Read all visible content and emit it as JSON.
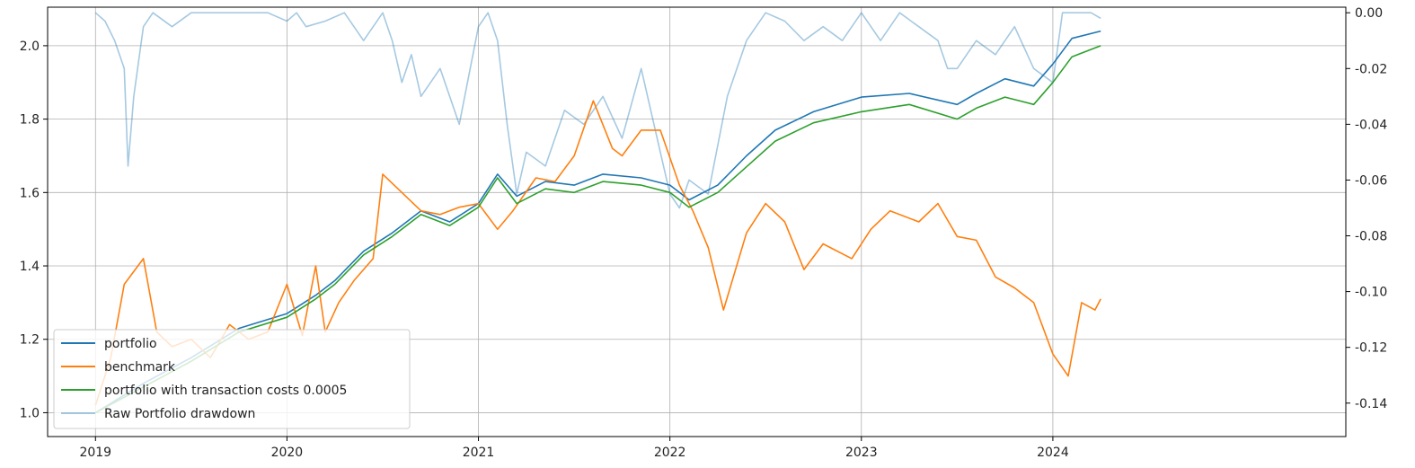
{
  "chart_data": {
    "type": "line",
    "title": "",
    "xlabel": "",
    "ylabel": "",
    "x_range": [
      2018.75,
      2025.53
    ],
    "ylim_left": [
      0.935,
      2.105
    ],
    "ylim_right": [
      -0.152,
      0.002
    ],
    "grid": true,
    "legend_position": "lower-left",
    "x_ticks": [
      {
        "label": "2019",
        "value": 2019
      },
      {
        "label": "2020",
        "value": 2020
      },
      {
        "label": "2021",
        "value": 2021
      },
      {
        "label": "2022",
        "value": 2022
      },
      {
        "label": "2023",
        "value": 2023
      },
      {
        "label": "2024",
        "value": 2024
      }
    ],
    "y_ticks_left": [
      {
        "label": "1.0",
        "value": 1.0
      },
      {
        "label": "1.2",
        "value": 1.2
      },
      {
        "label": "1.4",
        "value": 1.4
      },
      {
        "label": "1.6",
        "value": 1.6
      },
      {
        "label": "1.8",
        "value": 1.8
      },
      {
        "label": "2.0",
        "value": 2.0
      }
    ],
    "y_ticks_right": [
      {
        "label": "0.00",
        "value": 0.0
      },
      {
        "label": "-0.02",
        "value": -0.02
      },
      {
        "label": "-0.04",
        "value": -0.04
      },
      {
        "label": "-0.06",
        "value": -0.06
      },
      {
        "label": "-0.08",
        "value": -0.08
      },
      {
        "label": "-0.10",
        "value": -0.1
      },
      {
        "label": "-0.12",
        "value": -0.12
      },
      {
        "label": "-0.14",
        "value": -0.14
      }
    ],
    "series": [
      {
        "name": "portfolio",
        "axis": "left",
        "color": "#1f77b4",
        "opacity": 1,
        "x": [
          2019.0,
          2019.25,
          2019.5,
          2019.75,
          2020.0,
          2020.15,
          2020.25,
          2020.4,
          2020.55,
          2020.7,
          2020.85,
          2021.0,
          2021.1,
          2021.2,
          2021.35,
          2021.5,
          2021.65,
          2021.85,
          2022.0,
          2022.1,
          2022.25,
          2022.4,
          2022.55,
          2022.75,
          2023.0,
          2023.25,
          2023.5,
          2023.6,
          2023.75,
          2023.9,
          2024.0,
          2024.1,
          2024.25
        ],
        "y": [
          1.0,
          1.08,
          1.15,
          1.23,
          1.27,
          1.32,
          1.36,
          1.44,
          1.49,
          1.55,
          1.52,
          1.57,
          1.65,
          1.59,
          1.63,
          1.62,
          1.65,
          1.64,
          1.62,
          1.58,
          1.62,
          1.7,
          1.77,
          1.82,
          1.86,
          1.87,
          1.84,
          1.87,
          1.91,
          1.89,
          1.95,
          2.02,
          2.04
        ]
      },
      {
        "name": "benchmark",
        "axis": "left",
        "color": "#ff7f0e",
        "opacity": 1,
        "x": [
          2019.0,
          2019.08,
          2019.15,
          2019.25,
          2019.32,
          2019.4,
          2019.5,
          2019.6,
          2019.7,
          2019.8,
          2019.9,
          2020.0,
          2020.08,
          2020.15,
          2020.2,
          2020.27,
          2020.35,
          2020.45,
          2020.5,
          2020.6,
          2020.7,
          2020.8,
          2020.9,
          2021.0,
          2021.1,
          2021.18,
          2021.3,
          2021.4,
          2021.5,
          2021.6,
          2021.7,
          2021.75,
          2021.85,
          2021.95,
          2022.05,
          2022.12,
          2022.2,
          2022.28,
          2022.4,
          2022.5,
          2022.6,
          2022.7,
          2022.8,
          2022.95,
          2023.05,
          2023.15,
          2023.3,
          2023.4,
          2023.5,
          2023.6,
          2023.7,
          2023.8,
          2023.9,
          2024.0,
          2024.08,
          2024.15,
          2024.22,
          2024.25
        ],
        "y": [
          1.02,
          1.15,
          1.35,
          1.42,
          1.22,
          1.18,
          1.2,
          1.15,
          1.24,
          1.2,
          1.22,
          1.35,
          1.21,
          1.4,
          1.22,
          1.3,
          1.36,
          1.42,
          1.65,
          1.6,
          1.55,
          1.54,
          1.56,
          1.57,
          1.5,
          1.55,
          1.64,
          1.63,
          1.7,
          1.85,
          1.72,
          1.7,
          1.77,
          1.77,
          1.62,
          1.55,
          1.45,
          1.28,
          1.49,
          1.57,
          1.52,
          1.39,
          1.46,
          1.42,
          1.5,
          1.55,
          1.52,
          1.57,
          1.48,
          1.47,
          1.37,
          1.34,
          1.3,
          1.16,
          1.1,
          1.3,
          1.28,
          1.31
        ]
      },
      {
        "name": "portfolio with transaction costs 0.0005",
        "axis": "left",
        "color": "#2ca02c",
        "opacity": 1,
        "x": [
          2019.0,
          2019.25,
          2019.5,
          2019.75,
          2020.0,
          2020.15,
          2020.25,
          2020.4,
          2020.55,
          2020.7,
          2020.85,
          2021.0,
          2021.1,
          2021.2,
          2021.35,
          2021.5,
          2021.65,
          2021.85,
          2022.0,
          2022.1,
          2022.25,
          2022.4,
          2022.55,
          2022.75,
          2023.0,
          2023.25,
          2023.5,
          2023.6,
          2023.75,
          2023.9,
          2024.0,
          2024.1,
          2024.25
        ],
        "y": [
          1.0,
          1.07,
          1.14,
          1.22,
          1.26,
          1.31,
          1.35,
          1.43,
          1.48,
          1.54,
          1.51,
          1.56,
          1.64,
          1.57,
          1.61,
          1.6,
          1.63,
          1.62,
          1.6,
          1.56,
          1.6,
          1.67,
          1.74,
          1.79,
          1.82,
          1.84,
          1.8,
          1.83,
          1.86,
          1.84,
          1.9,
          1.97,
          2.0
        ]
      },
      {
        "name": "Raw Portfolio drawdown",
        "axis": "right",
        "color": "#1f77b4",
        "opacity": 0.4,
        "x": [
          2019.0,
          2019.05,
          2019.1,
          2019.15,
          2019.17,
          2019.2,
          2019.25,
          2019.3,
          2019.4,
          2019.5,
          2019.6,
          2019.7,
          2019.8,
          2019.9,
          2020.0,
          2020.05,
          2020.1,
          2020.2,
          2020.3,
          2020.4,
          2020.5,
          2020.55,
          2020.6,
          2020.65,
          2020.7,
          2020.8,
          2020.9,
          2021.0,
          2021.05,
          2021.1,
          2021.15,
          2021.2,
          2021.25,
          2021.35,
          2021.45,
          2021.55,
          2021.65,
          2021.75,
          2021.85,
          2021.95,
          2022.0,
          2022.05,
          2022.1,
          2022.2,
          2022.3,
          2022.4,
          2022.5,
          2022.6,
          2022.7,
          2022.8,
          2022.9,
          2023.0,
          2023.1,
          2023.2,
          2023.3,
          2023.4,
          2023.45,
          2023.5,
          2023.55,
          2023.6,
          2023.7,
          2023.8,
          2023.9,
          2024.0,
          2024.05,
          2024.1,
          2024.2,
          2024.25
        ],
        "y": [
          0.0,
          -0.003,
          -0.01,
          -0.02,
          -0.055,
          -0.03,
          -0.005,
          0.0,
          -0.005,
          0.0,
          0.0,
          0.0,
          0.0,
          0.0,
          -0.003,
          0.0,
          -0.005,
          -0.003,
          0.0,
          -0.01,
          0.0,
          -0.01,
          -0.025,
          -0.015,
          -0.03,
          -0.02,
          -0.04,
          -0.005,
          0.0,
          -0.01,
          -0.04,
          -0.065,
          -0.05,
          -0.055,
          -0.035,
          -0.04,
          -0.03,
          -0.045,
          -0.02,
          -0.05,
          -0.065,
          -0.07,
          -0.06,
          -0.065,
          -0.03,
          -0.01,
          0.0,
          -0.003,
          -0.01,
          -0.005,
          -0.01,
          0.0,
          -0.01,
          0.0,
          -0.005,
          -0.01,
          -0.02,
          -0.02,
          -0.015,
          -0.01,
          -0.015,
          -0.005,
          -0.02,
          -0.025,
          0.0,
          0.0,
          0.0,
          -0.002
        ]
      }
    ]
  }
}
